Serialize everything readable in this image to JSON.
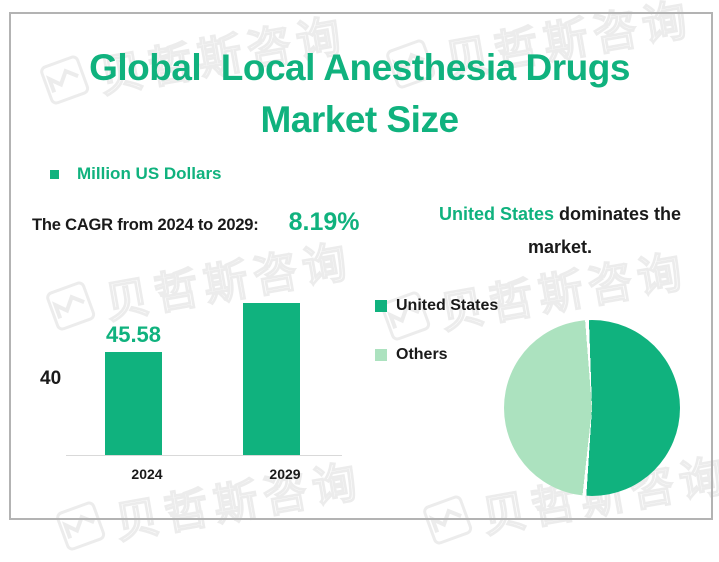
{
  "colors": {
    "primary": "#10B27E",
    "light_green": "#ACE2BF",
    "border": "#B3B3B3",
    "axis": "#D9D9D9",
    "ink": "#1A1A1A",
    "watermark": "#ECECEC"
  },
  "header": {
    "title_line1": "Global  Local Anesthesia Drugs",
    "title_line2": "Market Size"
  },
  "units_legend": {
    "label": "Million US Dollars"
  },
  "cagr": {
    "label": "The CAGR from 2024 to 2029:",
    "value": "8.19%"
  },
  "callout": {
    "highlight": "United States",
    "rest_line1": " dominates the",
    "line2": "market."
  },
  "watermark": {
    "text": "贝哲斯咨询"
  },
  "chart_data": [
    {
      "type": "bar",
      "title": "Global  Local Anesthesia Drugs Market Size",
      "ylabel": "Million US Dollars",
      "categories": [
        "2024",
        "2029"
      ],
      "values": [
        45.58,
        67.57
      ],
      "values_estimated": [
        false,
        true
      ],
      "value_labels": [
        "45.58",
        ""
      ],
      "y_ticks": [
        "40"
      ],
      "bar_color": "#10B27E",
      "grid": false,
      "axis_color": "#D9D9D9"
    },
    {
      "type": "pie",
      "labels": [
        "United States",
        "Others"
      ],
      "values": [
        52,
        48
      ],
      "values_estimated": [
        true,
        true
      ],
      "colors": [
        "#10B27E",
        "#ACE2BF"
      ],
      "legend_position": "left",
      "annotation": "United States dominates the market."
    }
  ]
}
